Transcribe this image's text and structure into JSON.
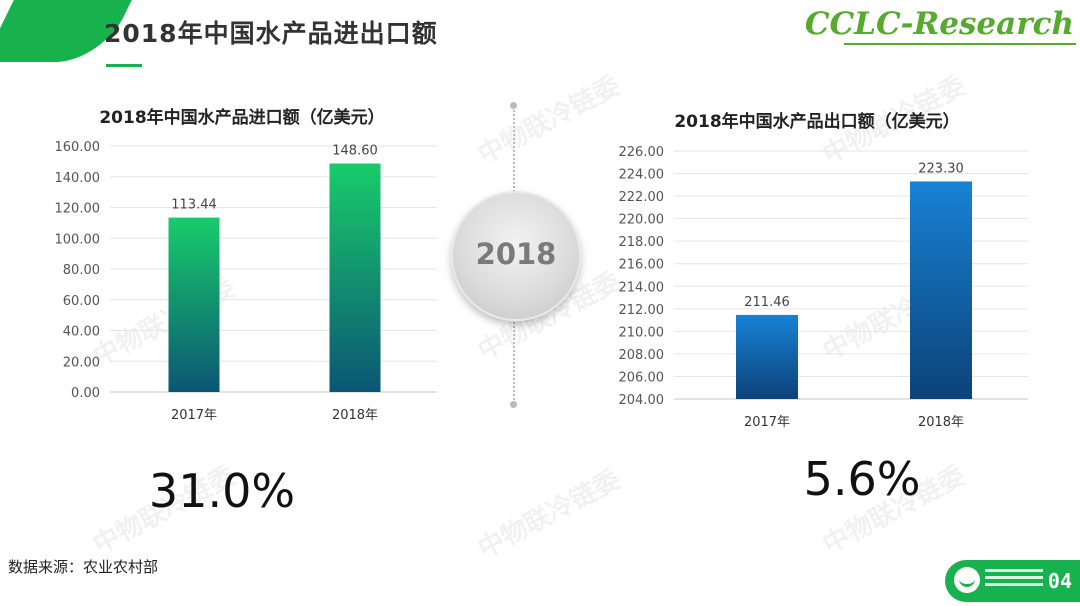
{
  "header": {
    "title": "2018年中国水产品进出口额",
    "brand": "CCLC-Research",
    "page_number": "04"
  },
  "center": {
    "year": "2018"
  },
  "source": "数据来源：农业农村部",
  "watermark": "中物联冷链委",
  "colors": {
    "brand_green": "#17b24e",
    "import_bar_top": "#18cc6a",
    "import_bar_bottom": "#0c5674",
    "export_bar_top": "#1782d4",
    "export_bar_bottom": "#0c4278"
  },
  "chart_data": [
    {
      "type": "bar",
      "title": "2018年中国水产品进口额（亿美元）",
      "categories": [
        "2017年",
        "2018年"
      ],
      "values": [
        113.44,
        148.6
      ],
      "value_labels": [
        "113.44",
        "148.60"
      ],
      "ylim": [
        0,
        160
      ],
      "yticks": [
        "0.00",
        "20.00",
        "40.00",
        "60.00",
        "80.00",
        "100.00",
        "120.00",
        "140.00",
        "160.00"
      ],
      "grid": true,
      "growth": "31.0%"
    },
    {
      "type": "bar",
      "title": "2018年中国水产品出口额（亿美元）",
      "categories": [
        "2017年",
        "2018年"
      ],
      "values": [
        211.46,
        223.3
      ],
      "value_labels": [
        "211.46",
        "223.30"
      ],
      "ylim": [
        204,
        226
      ],
      "yticks": [
        "204.00",
        "206.00",
        "208.00",
        "210.00",
        "212.00",
        "214.00",
        "216.00",
        "218.00",
        "220.00",
        "222.00",
        "224.00",
        "226.00"
      ],
      "grid": true,
      "growth": "5.6%"
    }
  ]
}
